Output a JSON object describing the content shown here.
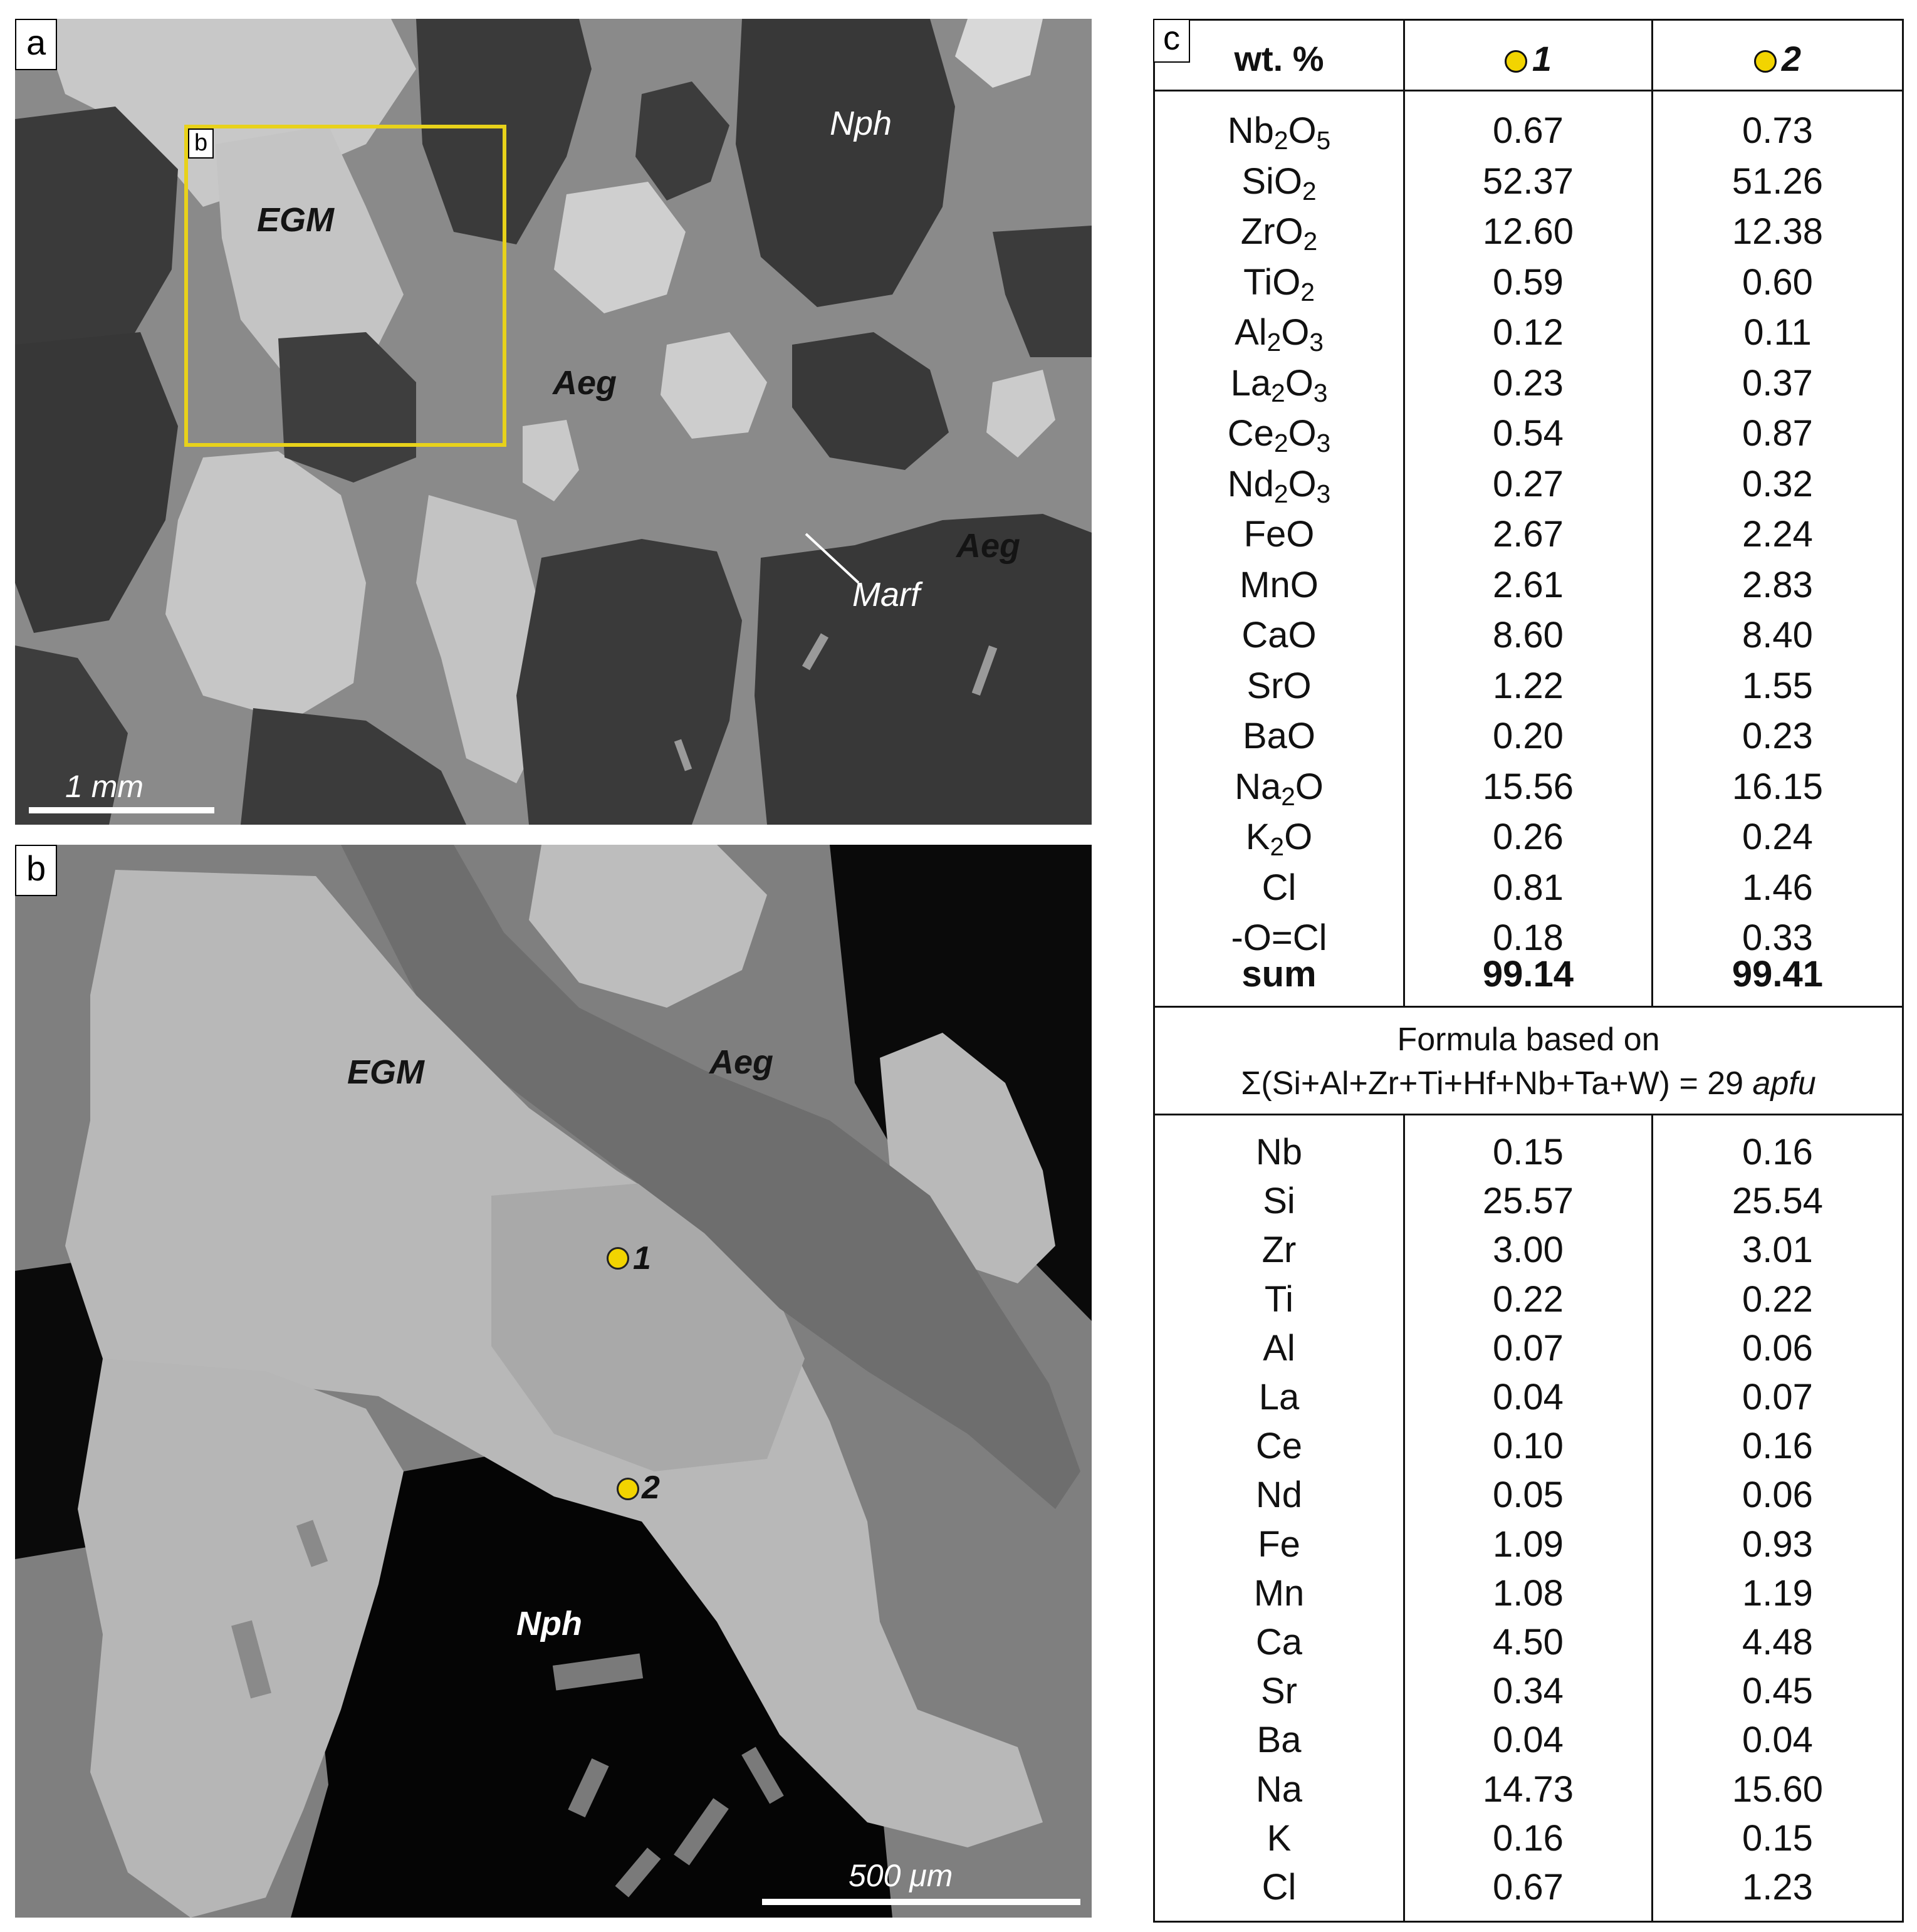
{
  "panel_a": {
    "label": "a",
    "inset_label": "b",
    "minerals": {
      "egm": "EGM",
      "aeg1": "Aeg",
      "aeg2": "Aeg",
      "nph": "Nph",
      "marf": "Marf"
    },
    "scale_text": "1 mm"
  },
  "panel_b": {
    "label": "b",
    "minerals": {
      "egm": "EGM",
      "aeg": "Aeg",
      "nph": "Nph"
    },
    "points": [
      "1",
      "2"
    ],
    "scale_text": "500 μm"
  },
  "panel_c": {
    "label": "c",
    "header": {
      "col0": "wt. %",
      "col1": "1",
      "col2": "2"
    },
    "oxides": [
      {
        "name": "Nb2O5",
        "base": "Nb",
        "sub1": "2",
        "mid": "O",
        "sub2": "5",
        "v1": "0.67",
        "v2": "0.73"
      },
      {
        "name": "SiO2",
        "base": "SiO",
        "sub1": "2",
        "mid": "",
        "sub2": "",
        "v1": "52.37",
        "v2": "51.26"
      },
      {
        "name": "ZrO2",
        "base": "ZrO",
        "sub1": "2",
        "mid": "",
        "sub2": "",
        "v1": "12.60",
        "v2": "12.38"
      },
      {
        "name": "TiO2",
        "base": "TiO",
        "sub1": "2",
        "mid": "",
        "sub2": "",
        "v1": "0.59",
        "v2": "0.60"
      },
      {
        "name": "Al2O3",
        "base": "Al",
        "sub1": "2",
        "mid": "O",
        "sub2": "3",
        "v1": "0.12",
        "v2": "0.11"
      },
      {
        "name": "La2O3",
        "base": "La",
        "sub1": "2",
        "mid": "O",
        "sub2": "3",
        "v1": "0.23",
        "v2": "0.37"
      },
      {
        "name": "Ce2O3",
        "base": "Ce",
        "sub1": "2",
        "mid": "O",
        "sub2": "3",
        "v1": "0.54",
        "v2": "0.87"
      },
      {
        "name": "Nd2O3",
        "base": "Nd",
        "sub1": "2",
        "mid": "O",
        "sub2": "3",
        "v1": "0.27",
        "v2": "0.32"
      },
      {
        "name": "FeO",
        "base": "FeO",
        "sub1": "",
        "mid": "",
        "sub2": "",
        "v1": "2.67",
        "v2": "2.24"
      },
      {
        "name": "MnO",
        "base": "MnO",
        "sub1": "",
        "mid": "",
        "sub2": "",
        "v1": "2.61",
        "v2": "2.83"
      },
      {
        "name": "CaO",
        "base": "CaO",
        "sub1": "",
        "mid": "",
        "sub2": "",
        "v1": "8.60",
        "v2": "8.40"
      },
      {
        "name": "SrO",
        "base": "SrO",
        "sub1": "",
        "mid": "",
        "sub2": "",
        "v1": "1.22",
        "v2": "1.55"
      },
      {
        "name": "BaO",
        "base": "BaO",
        "sub1": "",
        "mid": "",
        "sub2": "",
        "v1": "0.20",
        "v2": "0.23"
      },
      {
        "name": "Na2O",
        "base": "Na",
        "sub1": "2",
        "mid": "O",
        "sub2": "",
        "v1": "15.56",
        "v2": "16.15"
      },
      {
        "name": "K2O",
        "base": "K",
        "sub1": "2",
        "mid": "O",
        "sub2": "",
        "v1": "0.26",
        "v2": "0.24"
      },
      {
        "name": "Cl",
        "base": "Cl",
        "sub1": "",
        "mid": "",
        "sub2": "",
        "v1": "0.81",
        "v2": "1.46"
      },
      {
        "name": "-O=Cl",
        "base": "-O=Cl",
        "sub1": "",
        "mid": "",
        "sub2": "",
        "v1": "0.18",
        "v2": "0.33"
      }
    ],
    "sum": {
      "label": "sum",
      "v1": "99.14",
      "v2": "99.41"
    },
    "formula_line1": "Formula based on",
    "formula_line2_main": "Σ(Si+Al+Zr+Ti+Hf+Nb+Ta+W) = 29 ",
    "formula_line2_unit": "apfu",
    "elements": [
      {
        "name": "Nb",
        "v1": "0.15",
        "v2": "0.16"
      },
      {
        "name": "Si",
        "v1": "25.57",
        "v2": "25.54"
      },
      {
        "name": "Zr",
        "v1": "3.00",
        "v2": "3.01"
      },
      {
        "name": "Ti",
        "v1": "0.22",
        "v2": "0.22"
      },
      {
        "name": "Al",
        "v1": "0.07",
        "v2": "0.06"
      },
      {
        "name": "La",
        "v1": "0.04",
        "v2": "0.07"
      },
      {
        "name": "Ce",
        "v1": "0.10",
        "v2": "0.16"
      },
      {
        "name": "Nd",
        "v1": "0.05",
        "v2": "0.06"
      },
      {
        "name": "Fe",
        "v1": "1.09",
        "v2": "0.93"
      },
      {
        "name": "Mn",
        "v1": "1.08",
        "v2": "1.19"
      },
      {
        "name": "Ca",
        "v1": "4.50",
        "v2": "4.48"
      },
      {
        "name": "Sr",
        "v1": "0.34",
        "v2": "0.45"
      },
      {
        "name": "Ba",
        "v1": "0.04",
        "v2": "0.04"
      },
      {
        "name": "Na",
        "v1": "14.73",
        "v2": "15.60"
      },
      {
        "name": "K",
        "v1": "0.16",
        "v2": "0.15"
      },
      {
        "name": "Cl",
        "v1": "0.67",
        "v2": "1.23"
      }
    ],
    "colors": {
      "point_marker": "#f2d400",
      "inset_box": "#e8d21a"
    }
  }
}
